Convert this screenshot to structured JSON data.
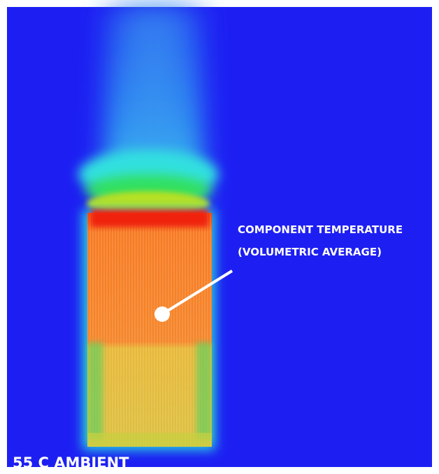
{
  "annotation": {
    "lines": [
      "COMPONENT TEMPERATURE",
      "(VOLUMETRIC AVERAGE)"
    ]
  },
  "footer": {
    "label": "55 C AMBIENT"
  }
}
